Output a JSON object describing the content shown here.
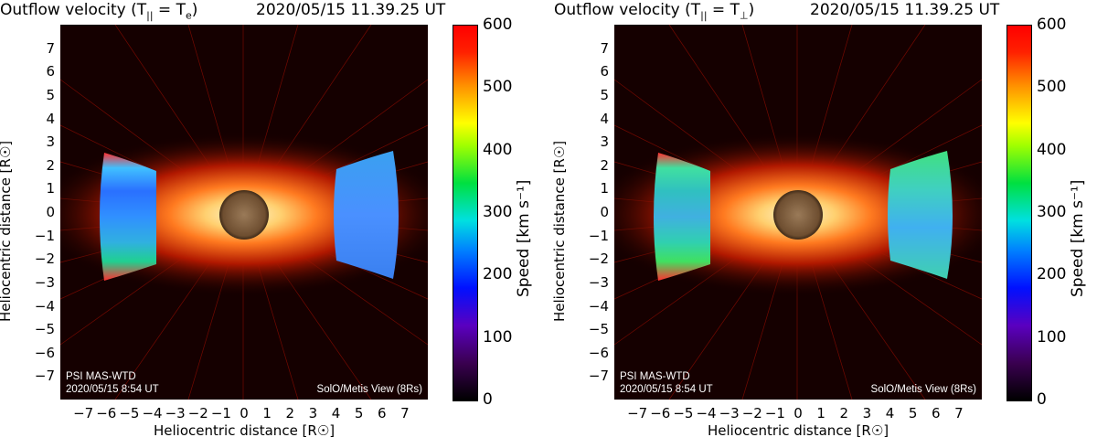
{
  "panels": [
    {
      "title_text": "Outflow velocity (T",
      "title_sub1": "||",
      "title_eq": " = T",
      "title_sub2": "e",
      "title_close": ")",
      "timestamp": "2020/05/15 11.39.25 UT",
      "model_label": "PSI MAS-WTD",
      "model_date": "2020/05/15 8:54 UT",
      "view_label": "SolO/Metis View (8Rs)",
      "colorbar_label": "Speed [km s⁻¹]"
    },
    {
      "title_text": "Outflow velocity (T",
      "title_sub1": "||",
      "title_eq": " = T",
      "title_sub2": "⊥",
      "title_close": ")",
      "timestamp": "2020/05/15 11.39.25 UT",
      "model_label": "PSI MAS-WTD",
      "model_date": "2020/05/15 8:54 UT",
      "view_label": "SolO/Metis View (8Rs)",
      "colorbar_label": "Speed [km s⁻¹]"
    }
  ],
  "axes": {
    "ylabel": "Heliocentric distance [R☉]",
    "xlabel": "Heliocentric distance [R☉]",
    "yticks": [
      "7",
      "6",
      "5",
      "4",
      "3",
      "2",
      "1",
      "0",
      "−1",
      "−2",
      "−3",
      "−4",
      "−5",
      "−6",
      "−7"
    ],
    "xticks": [
      "−7",
      "−6",
      "−5",
      "−4",
      "−3",
      "−2",
      "−1",
      "0",
      "1",
      "2",
      "3",
      "4",
      "5",
      "6",
      "7"
    ],
    "colorbar_ticks": [
      "600",
      "500",
      "400",
      "300",
      "200",
      "100",
      "0"
    ],
    "colorbar_range": [
      0,
      600
    ],
    "x_range": [
      -8,
      8
    ],
    "y_range": [
      -8,
      8
    ]
  }
}
